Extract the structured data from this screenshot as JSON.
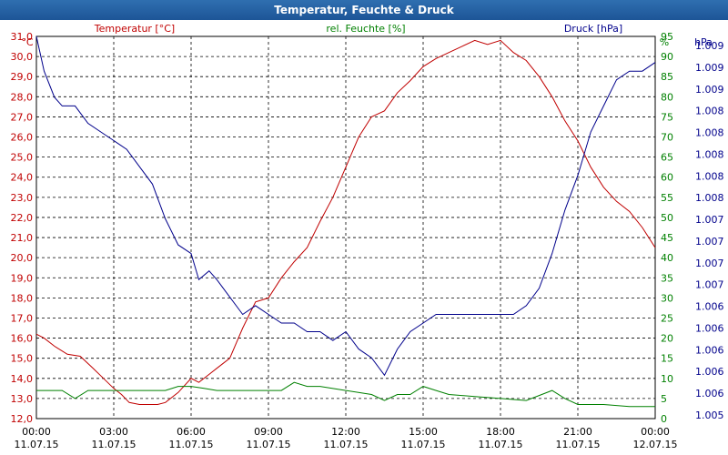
{
  "chart_data": {
    "type": "line",
    "title": "Temperatur, Feuchte & Druck",
    "x_ticks": [
      {
        "time": "00:00",
        "date": "11.07.15"
      },
      {
        "time": "03:00",
        "date": "11.07.15"
      },
      {
        "time": "06:00",
        "date": "11.07.15"
      },
      {
        "time": "09:00",
        "date": "11.07.15"
      },
      {
        "time": "12:00",
        "date": "11.07.15"
      },
      {
        "time": "15:00",
        "date": "11.07.15"
      },
      {
        "time": "18:00",
        "date": "11.07.15"
      },
      {
        "time": "21:00",
        "date": "11.07.15"
      },
      {
        "time": "00:00",
        "date": "12.07.15"
      }
    ],
    "x_range_hours": [
      0,
      24
    ],
    "axes": {
      "temperature": {
        "label": "Temperatur [°C]",
        "unit": "°C",
        "min": 12.0,
        "max": 31.0,
        "step": 1.0,
        "ticks": [
          "12,0",
          "13,0",
          "14,0",
          "15,0",
          "16,0",
          "17,0",
          "18,0",
          "19,0",
          "20,0",
          "21,0",
          "22,0",
          "23,0",
          "24,0",
          "25,0",
          "26,0",
          "27,0",
          "28,0",
          "29,0",
          "30,0",
          "31,0"
        ],
        "color": "#c00000"
      },
      "humidity": {
        "label": "rel. Feuchte [%]",
        "unit": "%",
        "min": 0,
        "max": 95,
        "step": 5,
        "ticks": [
          "0",
          "5",
          "10",
          "15",
          "20",
          "25",
          "30",
          "35",
          "40",
          "45",
          "50",
          "55",
          "60",
          "65",
          "70",
          "75",
          "80",
          "85",
          "90",
          "95"
        ],
        "color": "#008000"
      },
      "pressure": {
        "label": "Druck [hPa]",
        "unit": "hPa",
        "min": 1004.8,
        "max": 1009.2,
        "ticks": [
          "1.005",
          "1.006",
          "1.006",
          "1.006",
          "1.006",
          "1.006",
          "1.007",
          "1.007",
          "1.007",
          "1.007",
          "1.008",
          "1.008",
          "1.008",
          "1.008",
          "1.008",
          "1.009",
          "1.009",
          "1.009"
        ],
        "color": "#00008b"
      }
    },
    "series": [
      {
        "name": "Temperatur",
        "axis": "temperature",
        "color": "#c00000",
        "x": [
          0,
          0.3,
          0.7,
          1.2,
          1.7,
          2.2,
          2.6,
          3.0,
          3.3,
          3.6,
          4.0,
          4.3,
          4.7,
          5.0,
          5.5,
          6.0,
          6.3,
          6.7,
          7.0,
          7.5,
          8.0,
          8.5,
          9.0,
          9.5,
          10.0,
          10.5,
          11.0,
          11.5,
          12.0,
          12.5,
          13.0,
          13.5,
          14.0,
          14.5,
          15.0,
          15.5,
          16.0,
          16.5,
          17.0,
          17.5,
          18.0,
          18.5,
          19.0,
          19.5,
          20.0,
          20.5,
          21.0,
          21.5,
          22.0,
          22.5,
          23.0,
          23.5,
          24.0
        ],
        "values": [
          16.2,
          16.0,
          15.6,
          15.2,
          15.1,
          14.5,
          14.0,
          13.5,
          13.2,
          12.8,
          12.7,
          12.7,
          12.7,
          12.8,
          13.3,
          14.0,
          13.8,
          14.2,
          14.5,
          15.0,
          16.5,
          17.8,
          18.0,
          19.0,
          19.8,
          20.5,
          21.8,
          23.0,
          24.5,
          26.0,
          27.0,
          27.3,
          28.2,
          28.8,
          29.5,
          29.9,
          30.2,
          30.5,
          30.8,
          30.6,
          30.8,
          30.2,
          29.8,
          29.0,
          28.0,
          26.8,
          25.8,
          24.5,
          23.5,
          22.8,
          22.3,
          21.5,
          20.5
        ]
      },
      {
        "name": "rel. Feuchte",
        "axis": "humidity",
        "color": "#008000",
        "x": [
          0,
          1.0,
          1.5,
          2.0,
          3.0,
          4.0,
          5.0,
          5.5,
          6.0,
          6.5,
          7.0,
          8.0,
          9.0,
          9.5,
          10.0,
          10.5,
          11.0,
          12.0,
          13.0,
          13.5,
          14.0,
          14.5,
          15.0,
          15.5,
          16.0,
          17.0,
          18.0,
          19.0,
          20.0,
          20.5,
          21.0,
          22.0,
          23.0,
          24.0
        ],
        "values": [
          7,
          7,
          5,
          7,
          7,
          7,
          7,
          8,
          8,
          7.5,
          7,
          7,
          7,
          7,
          9,
          8,
          8,
          7,
          6,
          4.5,
          6,
          6,
          8,
          7,
          6,
          5.5,
          5,
          4.5,
          7,
          5,
          3.5,
          3.5,
          3,
          3
        ]
      },
      {
        "name": "Druck",
        "axis": "pressure",
        "color": "#00008b",
        "x": [
          0,
          0.3,
          0.7,
          1.0,
          1.5,
          2.0,
          2.5,
          3.0,
          3.5,
          4.0,
          4.5,
          5.0,
          5.5,
          6.0,
          6.3,
          6.7,
          7.0,
          7.5,
          8.0,
          8.5,
          9.0,
          9.5,
          10.0,
          10.5,
          11.0,
          11.5,
          12.0,
          12.5,
          13.0,
          13.5,
          14.0,
          14.5,
          15.0,
          15.5,
          16.0,
          16.5,
          17.0,
          17.5,
          18.0,
          18.5,
          19.0,
          19.5,
          20.0,
          20.5,
          21.0,
          21.5,
          22.0,
          22.5,
          23.0,
          23.5,
          24.0
        ],
        "values": [
          1009.2,
          1008.8,
          1008.5,
          1008.4,
          1008.4,
          1008.2,
          1008.1,
          1008.0,
          1007.9,
          1007.7,
          1007.5,
          1007.1,
          1006.8,
          1006.7,
          1006.4,
          1006.5,
          1006.4,
          1006.2,
          1006.0,
          1006.1,
          1006.0,
          1005.9,
          1005.9,
          1005.8,
          1005.8,
          1005.7,
          1005.8,
          1005.6,
          1005.5,
          1005.3,
          1005.6,
          1005.8,
          1005.9,
          1006.0,
          1006.0,
          1006.0,
          1006.0,
          1006.0,
          1006.0,
          1006.0,
          1006.1,
          1006.3,
          1006.7,
          1007.2,
          1007.6,
          1008.1,
          1008.4,
          1008.7,
          1008.8,
          1008.8,
          1008.9
        ]
      }
    ],
    "grid": true
  }
}
